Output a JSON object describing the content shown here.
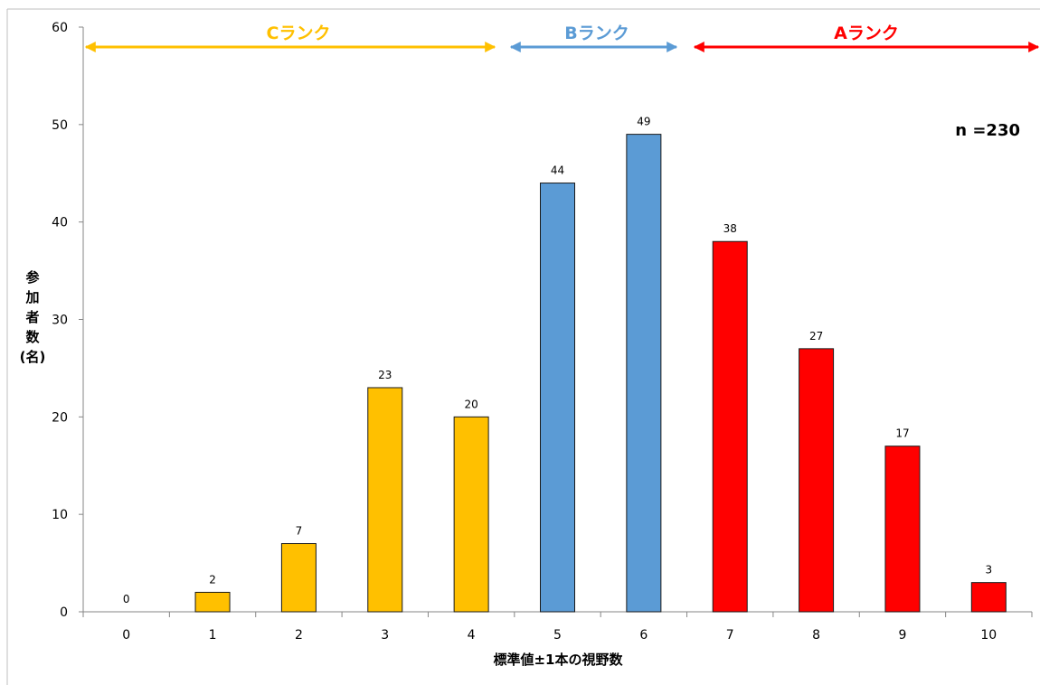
{
  "chart_data": {
    "type": "bar",
    "xlabel": "標準値±1本の視野数",
    "ylabel": "参加者数(名)",
    "ylabel_lines": [
      "参",
      "加",
      "者",
      "数",
      "(名)"
    ],
    "ylim": [
      0,
      60
    ],
    "yticks": [
      0,
      10,
      20,
      30,
      40,
      50,
      60
    ],
    "categories": [
      "0",
      "1",
      "2",
      "3",
      "4",
      "5",
      "6",
      "7",
      "8",
      "9",
      "10"
    ],
    "values": [
      0,
      2,
      7,
      23,
      20,
      44,
      49,
      38,
      27,
      17,
      3
    ],
    "bar_rank": [
      "C",
      "C",
      "C",
      "C",
      "C",
      "B",
      "B",
      "A",
      "A",
      "A",
      "A"
    ],
    "grid": false,
    "annotation": "n =230",
    "ranks": [
      {
        "label": "Cランク",
        "color": "#FFC000"
      },
      {
        "label": "Bランク",
        "color": "#5B9BD5"
      },
      {
        "label": "Aランク",
        "color": "#FF0000"
      }
    ],
    "colors": {
      "C": "#FFC000",
      "B": "#5B9BD5",
      "A": "#FF0000"
    }
  }
}
